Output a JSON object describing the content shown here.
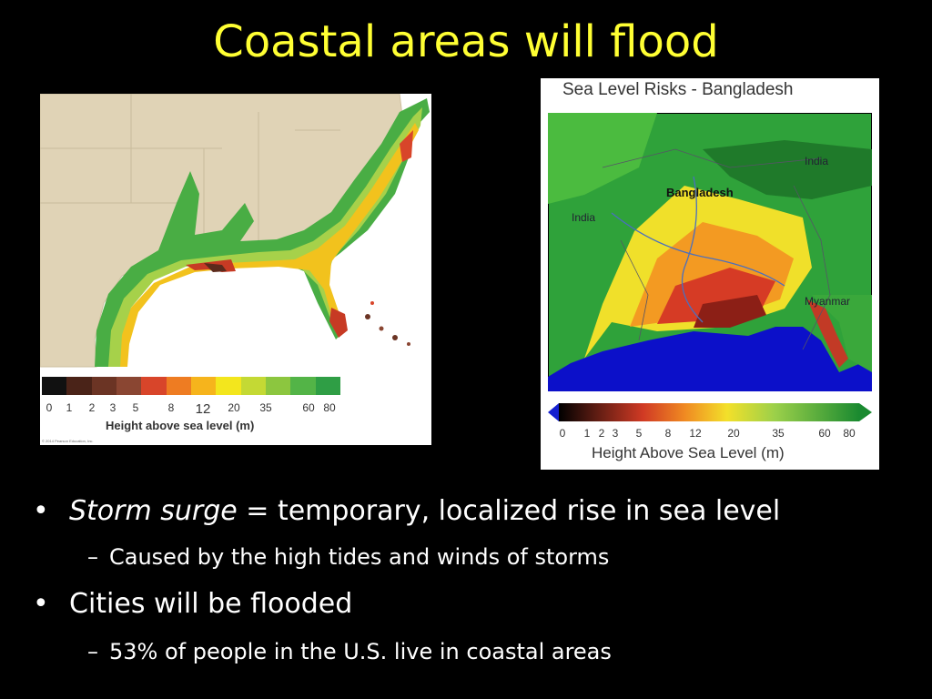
{
  "slide": {
    "title": "Coastal areas will flood"
  },
  "us_map": {
    "legend_ticks": [
      "0",
      "1",
      "2",
      "3",
      "5",
      "8",
      "12",
      "20",
      "35",
      "60",
      "80"
    ],
    "legend_title": "Height above sea level (m)",
    "copyright": "© 2014 Pearson Education, Inc.",
    "colors": [
      "#111111",
      "#4a2318",
      "#6b3424",
      "#8a4632",
      "#d8452a",
      "#ee7c22",
      "#f6b41c",
      "#f3e61d",
      "#c4d934",
      "#8cc63f",
      "#53b447",
      "#2f9e45"
    ]
  },
  "bd_map": {
    "title": "Sea Level Risks - Bangladesh",
    "labels": {
      "bangladesh": "Bangladesh",
      "india_east": "India",
      "india_west": "India",
      "myanmar": "Myanmar"
    },
    "legend_ticks": [
      "0",
      "1",
      "2",
      "3",
      "5",
      "8",
      "12",
      "20",
      "35",
      "60",
      "80"
    ],
    "legend_title": "Height Above Sea Level (m)"
  },
  "bullets": [
    {
      "level": 1,
      "emph": "Storm surge",
      "text": " = temporary, localized rise in sea level"
    },
    {
      "level": 2,
      "text": "Caused by the high tides and winds of storms"
    },
    {
      "level": 1,
      "text": "Cities will be flooded"
    },
    {
      "level": 2,
      "text": "53% of people in the U.S. live in coastal areas"
    }
  ]
}
